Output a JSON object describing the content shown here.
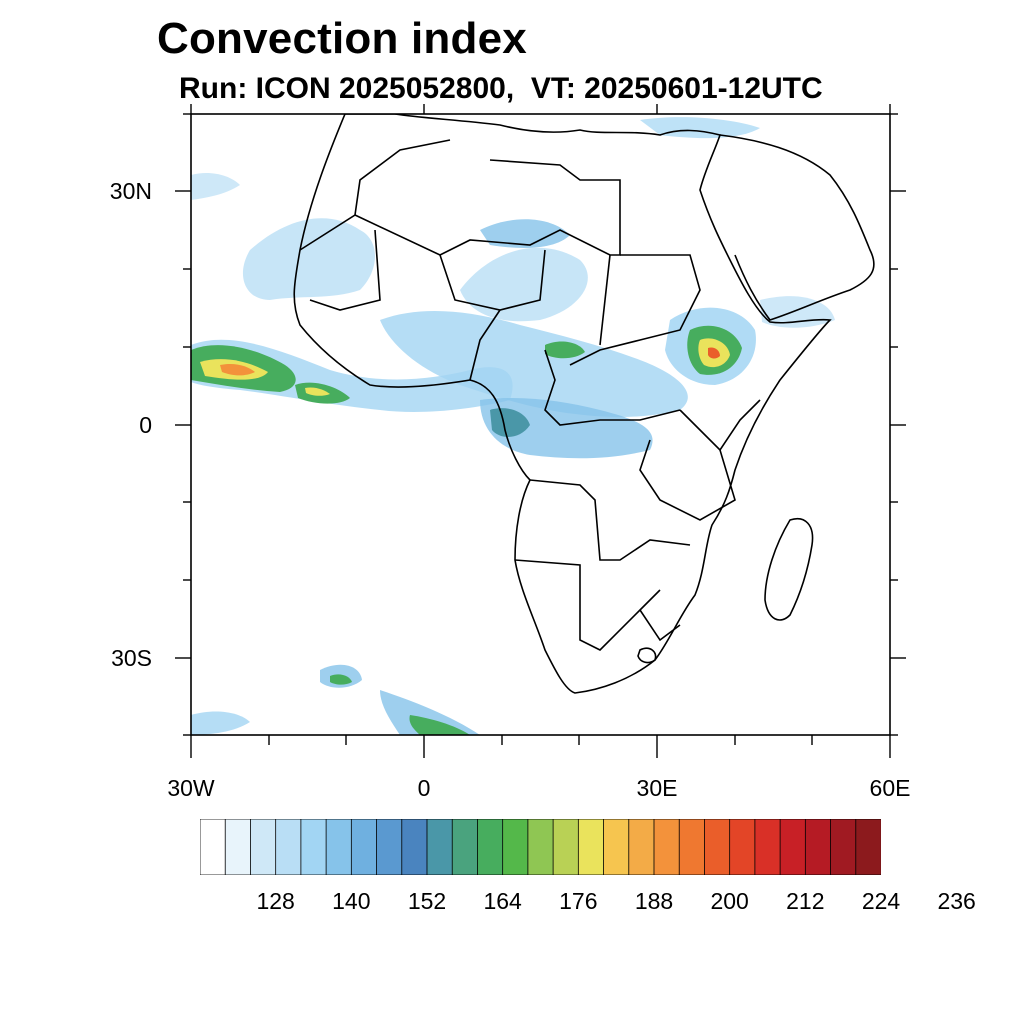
{
  "title": "Convection index",
  "subtitle": "Run: ICON 2025052800,  VT: 20250601-12UTC",
  "map": {
    "lon_range": [
      -30,
      60
    ],
    "lat_range": [
      -40,
      40
    ],
    "lat_labels": [
      {
        "text": "30N",
        "lat": 30
      },
      {
        "text": "0",
        "lat": 0
      },
      {
        "text": "30S",
        "lat": -30
      }
    ],
    "lon_labels": [
      {
        "text": "30W",
        "lon": -30
      },
      {
        "text": "0",
        "lon": 0
      },
      {
        "text": "30E",
        "lon": 30
      },
      {
        "text": "60E",
        "lon": 60
      }
    ]
  },
  "colorbar": {
    "colors": [
      "#ffffff",
      "#e8f4fb",
      "#cfe8f7",
      "#b9def5",
      "#a2d5f3",
      "#86c3ea",
      "#6fb0e0",
      "#5a99d0",
      "#4a84bf",
      "#4a97a8",
      "#4aa37e",
      "#47ad5e",
      "#54b84a",
      "#8fc653",
      "#b9d155",
      "#eae35c",
      "#f6c54f",
      "#f3ab47",
      "#f3923b",
      "#ef7830",
      "#ea5e2a",
      "#e34527",
      "#d93027",
      "#c82026",
      "#b51b24",
      "#a01a22",
      "#8c1a1d"
    ],
    "labels": [
      "128",
      "140",
      "152",
      "164",
      "176",
      "188",
      "200",
      "212",
      "224",
      "236"
    ]
  }
}
